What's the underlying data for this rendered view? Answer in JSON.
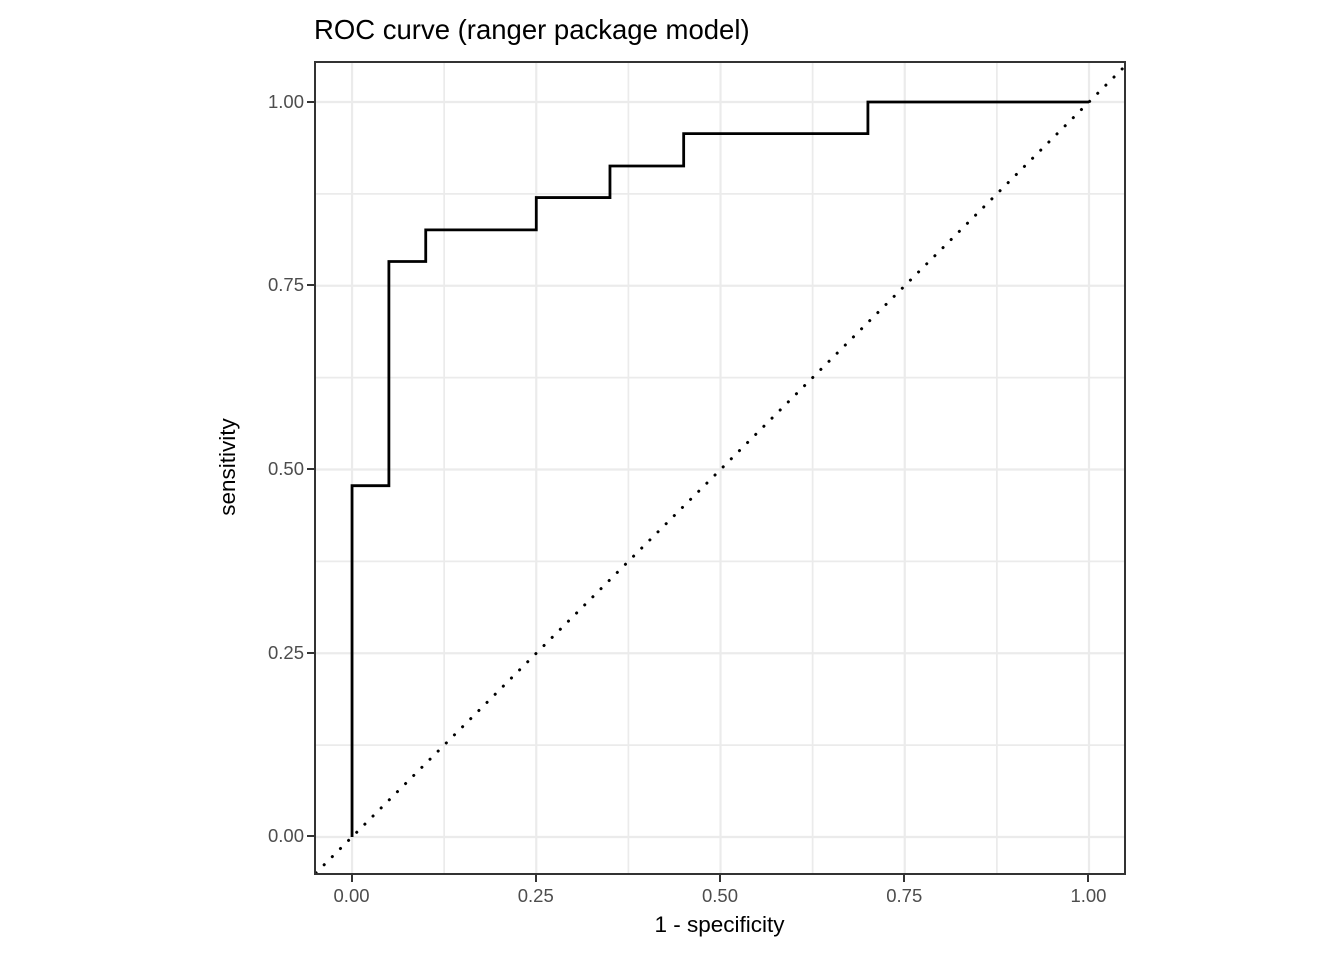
{
  "chart_data": {
    "type": "line",
    "title": "ROC curve (ranger package model)",
    "xlabel": "1 - specificity",
    "ylabel": "sensitivity",
    "x_ticks": [
      0,
      0.25,
      0.5,
      0.75,
      1
    ],
    "x_tick_labels": [
      "0.00",
      "0.25",
      "0.50",
      "0.75",
      "1.00"
    ],
    "y_ticks": [
      0,
      0.25,
      0.5,
      0.75,
      1
    ],
    "y_tick_labels": [
      "0.00",
      "0.25",
      "0.50",
      "0.75",
      "1.00"
    ],
    "x_minor_gridlines": [
      0.125,
      0.375,
      0.625,
      0.875
    ],
    "y_minor_gridlines": [
      0.125,
      0.375,
      0.625,
      0.875
    ],
    "xlim": [
      -0.0489,
      1.0475
    ],
    "ylim": [
      -0.049,
      1.0531
    ],
    "grid": true,
    "legend": "none",
    "series": [
      {
        "name": "roc-step-curve",
        "line_style": "solid",
        "color": "#000000",
        "points": [
          [
            0.0,
            0.0
          ],
          [
            0.0,
            0.478
          ],
          [
            0.05,
            0.478
          ],
          [
            0.05,
            0.783
          ],
          [
            0.1,
            0.783
          ],
          [
            0.1,
            0.826
          ],
          [
            0.25,
            0.826
          ],
          [
            0.25,
            0.87
          ],
          [
            0.35,
            0.87
          ],
          [
            0.35,
            0.913
          ],
          [
            0.45,
            0.913
          ],
          [
            0.45,
            0.957
          ],
          [
            0.7,
            0.957
          ],
          [
            0.7,
            1.0
          ],
          [
            1.0,
            1.0
          ]
        ]
      },
      {
        "name": "chance-diagonal",
        "line_style": "dotted",
        "color": "#000000",
        "points": [
          [
            -0.0489,
            -0.0489
          ],
          [
            1.0475,
            1.0475
          ]
        ]
      }
    ],
    "colors": {
      "grid": "#EBEBEB",
      "panel_border": "#333333",
      "tick_label": "#4D4D4D",
      "axis_title": "#000000",
      "title": "#000000",
      "background": "#FFFFFF"
    }
  }
}
